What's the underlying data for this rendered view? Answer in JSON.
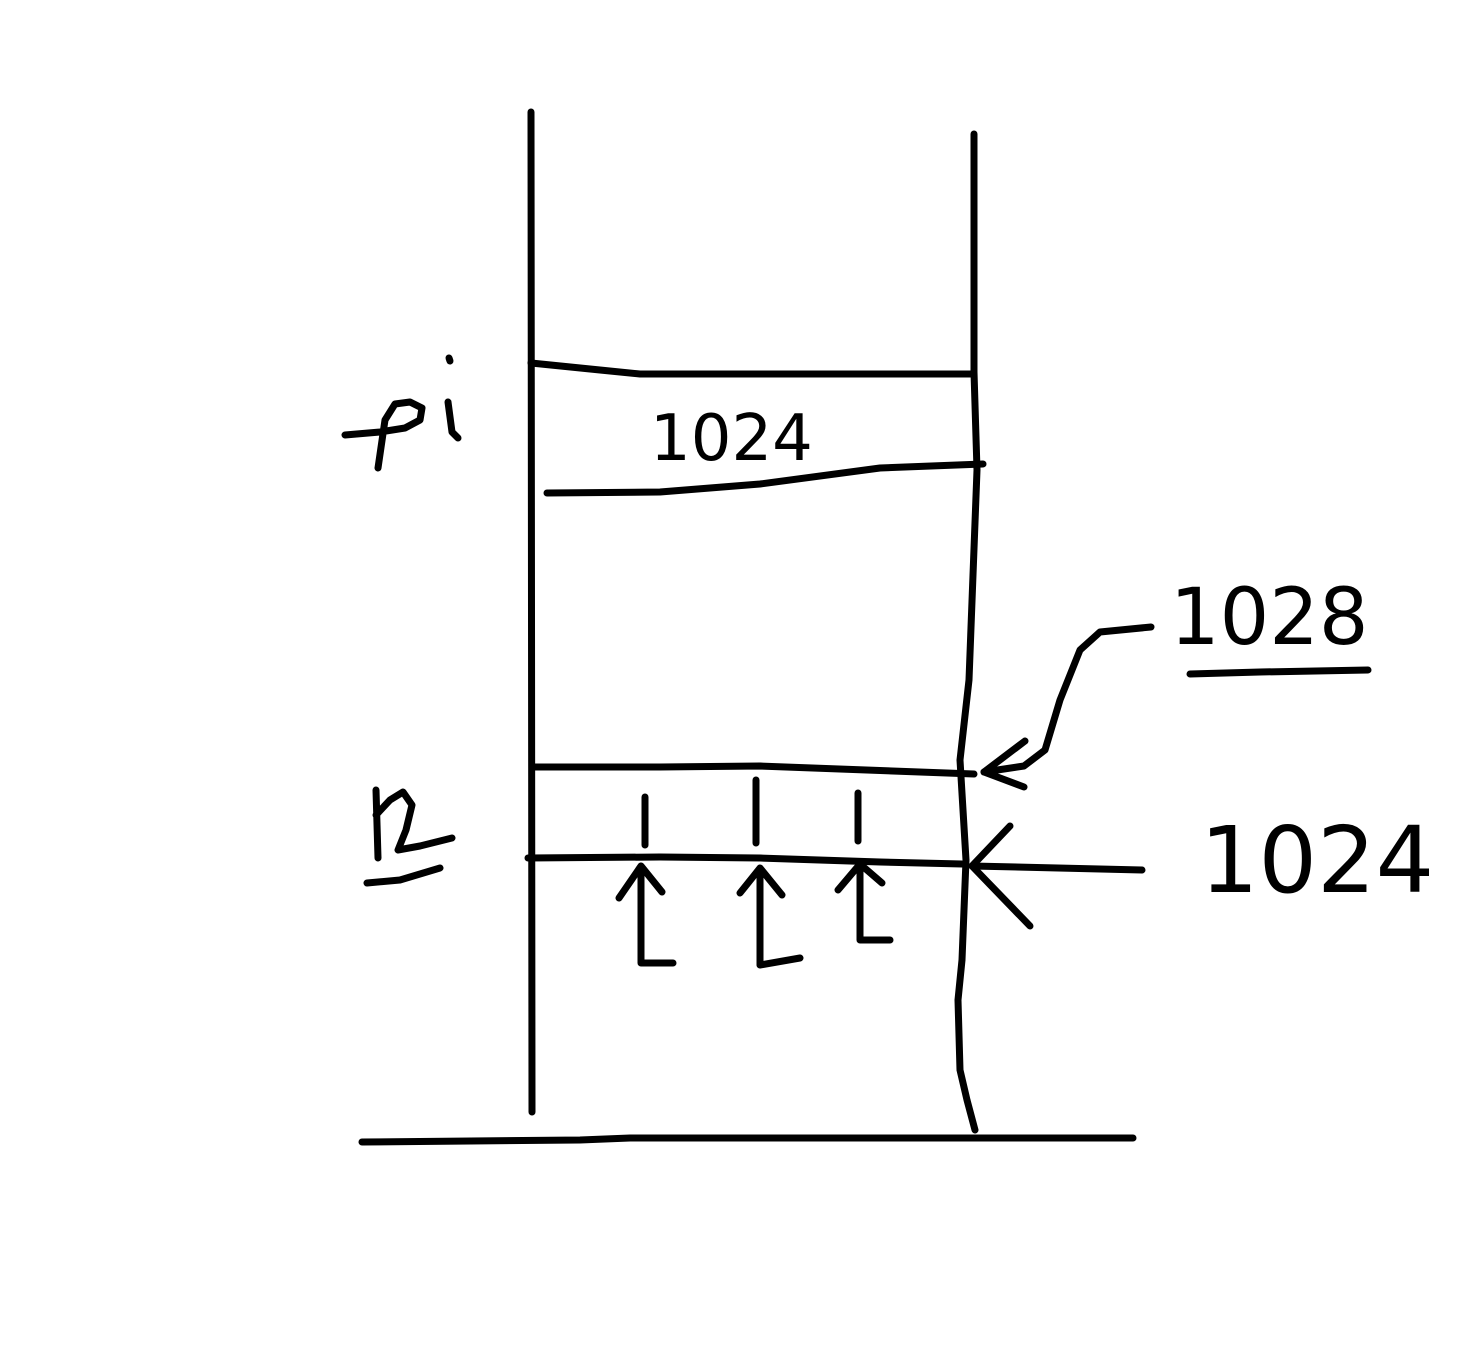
{
  "diagram": {
    "ink_color": "#000000",
    "background_color": "#ffffff",
    "labels": {
      "pi": "pi",
      "upper_cell_value": "1024",
      "lower_cell_name": "r2",
      "arrow_to_cell_top": "1028",
      "arrow_to_cell_bottom": "1024"
    }
  }
}
